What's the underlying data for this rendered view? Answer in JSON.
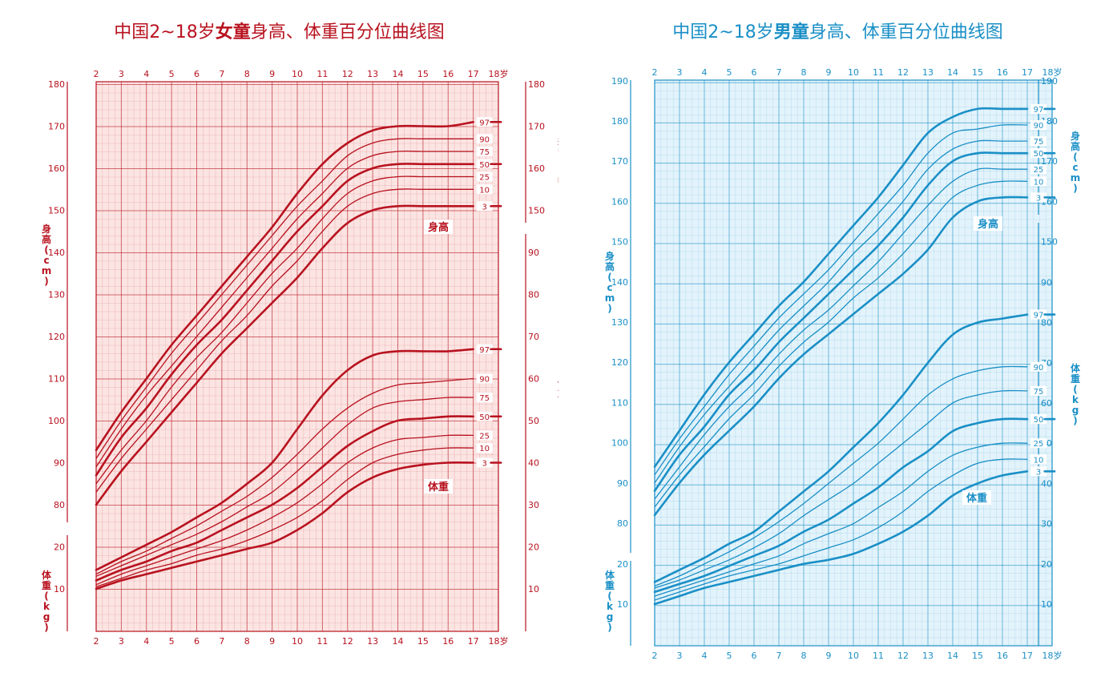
{
  "charts": [
    {
      "title_pre": "中国2~18岁",
      "title_bold": "女童",
      "title_post": "身高、体重百分位曲线图",
      "color": "#b8121f",
      "fill": "#fbe4e2",
      "ticks_x": [
        "2",
        "3",
        "4",
        "5",
        "6",
        "7",
        "8",
        "9",
        "10",
        "11",
        "12",
        "13",
        "14",
        "15",
        "16",
        "17",
        "18岁"
      ],
      "left_height_ticks": [
        "80",
        "90",
        "100",
        "110",
        "120",
        "130",
        "140",
        "150",
        "160",
        "170",
        "180"
      ],
      "left_weight_ticks": [
        "10",
        "20"
      ],
      "right_height_ticks": [
        "150",
        "160",
        "170",
        "180"
      ],
      "right_weight_ticks": [
        "10",
        "20",
        "30",
        "40",
        "50",
        "60",
        "70",
        "80",
        "90"
      ],
      "left_height_label": "身高(cm)",
      "left_weight_label": "体重(kg)",
      "right_height_label": "身高(cm)",
      "right_weight_label": "体重(kg)",
      "curve_height_label": "身高",
      "curve_weight_label": "体重"
    },
    {
      "title_pre": "中国2~18岁",
      "title_bold": "男童",
      "title_post": "身高、体重百分位曲线图",
      "color": "#1a8fc6",
      "fill": "#e3f3fb",
      "ticks_x": [
        "2",
        "3",
        "4",
        "5",
        "6",
        "7",
        "8",
        "9",
        "10",
        "11",
        "12",
        "13",
        "14",
        "15",
        "16",
        "17",
        "18岁"
      ],
      "left_height_ticks": [
        "80",
        "90",
        "100",
        "110",
        "120",
        "130",
        "140",
        "150",
        "160",
        "170",
        "180",
        "190"
      ],
      "left_weight_ticks": [
        "10",
        "20"
      ],
      "right_height_ticks": [
        "160",
        "170",
        "180",
        "190"
      ],
      "right_weight_ticks": [
        "10",
        "20",
        "30",
        "40",
        "50",
        "60",
        "70",
        "80",
        "90",
        "150"
      ],
      "left_height_label": "身高(cm)",
      "left_weight_label": "体重(kg)",
      "right_height_label": "身高(cm)",
      "right_weight_label": "体重(kg)",
      "curve_height_label": "身高",
      "curve_weight_label": "体重"
    }
  ],
  "chart_data": [
    {
      "type": "line",
      "title": "中国2~18岁女童身高、体重百分位曲线图",
      "x": [
        2,
        3,
        4,
        5,
        6,
        7,
        8,
        9,
        10,
        11,
        12,
        13,
        14,
        15,
        16,
        17
      ],
      "xlim": [
        2,
        18
      ],
      "height_ylim": [
        75,
        180
      ],
      "weight_ylim": [
        5,
        95
      ],
      "height_series": [
        {
          "name": "3",
          "values": [
            80,
            88,
            95,
            102,
            109,
            116,
            122,
            128,
            134,
            141,
            147,
            150,
            151,
            151,
            151,
            151
          ]
        },
        {
          "name": "10",
          "values": [
            83,
            91,
            98,
            105,
            112,
            119,
            125,
            132,
            138,
            145,
            151,
            154,
            155,
            155,
            155,
            155
          ]
        },
        {
          "name": "25",
          "values": [
            85,
            93,
            100,
            108,
            115,
            121,
            128,
            135,
            141,
            148,
            154,
            157,
            158,
            158,
            158,
            158
          ]
        },
        {
          "name": "50",
          "values": [
            87,
            96,
            103,
            111,
            118,
            124,
            131,
            138,
            145,
            151,
            157,
            160,
            161,
            161,
            161,
            161
          ]
        },
        {
          "name": "75",
          "values": [
            89,
            98,
            106,
            113,
            120,
            127,
            134,
            141,
            148,
            154,
            160,
            163,
            164,
            164,
            164,
            164
          ]
        },
        {
          "name": "90",
          "values": [
            91,
            100,
            108,
            116,
            123,
            130,
            137,
            144,
            151,
            157,
            163,
            166,
            167,
            167,
            167,
            167
          ]
        },
        {
          "name": "97",
          "values": [
            93,
            102,
            110,
            118,
            125,
            132,
            139,
            146,
            154,
            161,
            166,
            169,
            170,
            170,
            170,
            171
          ]
        }
      ],
      "weight_series": [
        {
          "name": "3",
          "values": [
            10,
            12,
            13.5,
            15,
            16.5,
            18,
            19.5,
            21,
            24,
            28,
            33,
            36.5,
            38.5,
            39.5,
            40,
            40
          ]
        },
        {
          "name": "10",
          "values": [
            10.5,
            12.5,
            14.5,
            16,
            18,
            19.5,
            21.5,
            24,
            27,
            31,
            36,
            40,
            42,
            43,
            43.5,
            43.5
          ]
        },
        {
          "name": "25",
          "values": [
            11,
            13.5,
            15.5,
            17.5,
            19.5,
            21.5,
            24,
            27,
            30.5,
            35,
            40,
            43.5,
            45.5,
            46,
            46.5,
            46.5
          ]
        },
        {
          "name": "50",
          "values": [
            12,
            14.5,
            16.5,
            19,
            21,
            24,
            27,
            30,
            34,
            39,
            44,
            47.5,
            50,
            50.5,
            51,
            51
          ]
        },
        {
          "name": "75",
          "values": [
            13,
            15.5,
            18,
            20.5,
            23,
            26,
            29.5,
            33,
            38,
            43.5,
            49,
            53,
            54.5,
            55,
            55.5,
            55.5
          ]
        },
        {
          "name": "90",
          "values": [
            13.5,
            16.5,
            19,
            22,
            25,
            28.5,
            32,
            36.5,
            42,
            48,
            53,
            56.5,
            58.5,
            59,
            59.5,
            60
          ]
        },
        {
          "name": "97",
          "values": [
            14.5,
            17.5,
            20.5,
            23.5,
            27,
            30.5,
            35,
            40,
            48,
            56,
            62,
            65.5,
            66.5,
            66.5,
            66.5,
            67
          ]
        }
      ]
    },
    {
      "type": "line",
      "title": "中国2~18岁男童身高、体重百分位曲线图",
      "x": [
        2,
        3,
        4,
        5,
        6,
        7,
        8,
        9,
        10,
        11,
        12,
        13,
        14,
        15,
        16,
        17
      ],
      "xlim": [
        2,
        18
      ],
      "height_ylim": [
        75,
        190
      ],
      "weight_ylim": [
        5,
        100
      ],
      "height_series": [
        {
          "name": "3",
          "values": [
            82,
            90,
            97,
            103,
            109,
            116,
            122,
            127,
            132,
            137,
            142,
            148,
            156,
            160,
            161,
            161
          ]
        },
        {
          "name": "10",
          "values": [
            84,
            92,
            99,
            106,
            112,
            119,
            125,
            130,
            136,
            141,
            147,
            154,
            161,
            164,
            165,
            165
          ]
        },
        {
          "name": "25",
          "values": [
            86,
            94,
            102,
            109,
            115,
            122,
            128,
            133,
            139,
            145,
            152,
            159,
            165,
            168,
            168,
            168
          ]
        },
        {
          "name": "50",
          "values": [
            88,
            97,
            104,
            112,
            118,
            125,
            131,
            137,
            143,
            149,
            156,
            164,
            170,
            172,
            172,
            172
          ]
        },
        {
          "name": "75",
          "values": [
            90,
            99,
            107,
            114,
            121,
            128,
            134,
            140,
            147,
            153,
            160,
            168,
            173,
            175,
            175,
            175
          ]
        },
        {
          "name": "90",
          "values": [
            92,
            101,
            109,
            117,
            124,
            131,
            137,
            143,
            150,
            157,
            164,
            172,
            177,
            178,
            179,
            179
          ]
        },
        {
          "name": "97",
          "values": [
            94,
            103,
            112,
            120,
            127,
            134,
            140,
            147,
            154,
            161,
            169,
            177,
            181,
            183,
            183,
            183
          ]
        }
      ],
      "weight_series": [
        {
          "name": "3",
          "values": [
            10,
            12,
            14,
            15.5,
            17,
            18.5,
            20,
            21,
            22.5,
            25,
            28,
            32,
            37,
            40,
            42,
            43
          ]
        },
        {
          "name": "10",
          "values": [
            11,
            13,
            15,
            17,
            18.5,
            20,
            22,
            24,
            26,
            29,
            33,
            38,
            42,
            45,
            46,
            46
          ]
        },
        {
          "name": "25",
          "values": [
            12,
            14,
            16,
            18,
            20,
            22,
            25,
            27.5,
            30,
            34,
            38,
            43,
            47,
            49,
            50,
            50
          ]
        },
        {
          "name": "50",
          "values": [
            13,
            15,
            17,
            19.5,
            22,
            24.5,
            28,
            31,
            35,
            39,
            44,
            48,
            53,
            55,
            56,
            56
          ]
        },
        {
          "name": "75",
          "values": [
            14,
            16,
            18.5,
            21,
            24,
            27.5,
            32,
            36,
            40,
            45,
            50,
            55,
            60,
            62,
            63,
            63
          ]
        },
        {
          "name": "90",
          "values": [
            14.5,
            17,
            20,
            23,
            26.5,
            30.5,
            35,
            40,
            45,
            50,
            56,
            62,
            66,
            68,
            69,
            69
          ]
        },
        {
          "name": "97",
          "values": [
            15.5,
            18.5,
            21.5,
            25,
            28,
            33,
            38,
            43,
            49,
            55,
            62,
            70,
            77,
            80,
            81,
            82
          ]
        }
      ]
    }
  ]
}
